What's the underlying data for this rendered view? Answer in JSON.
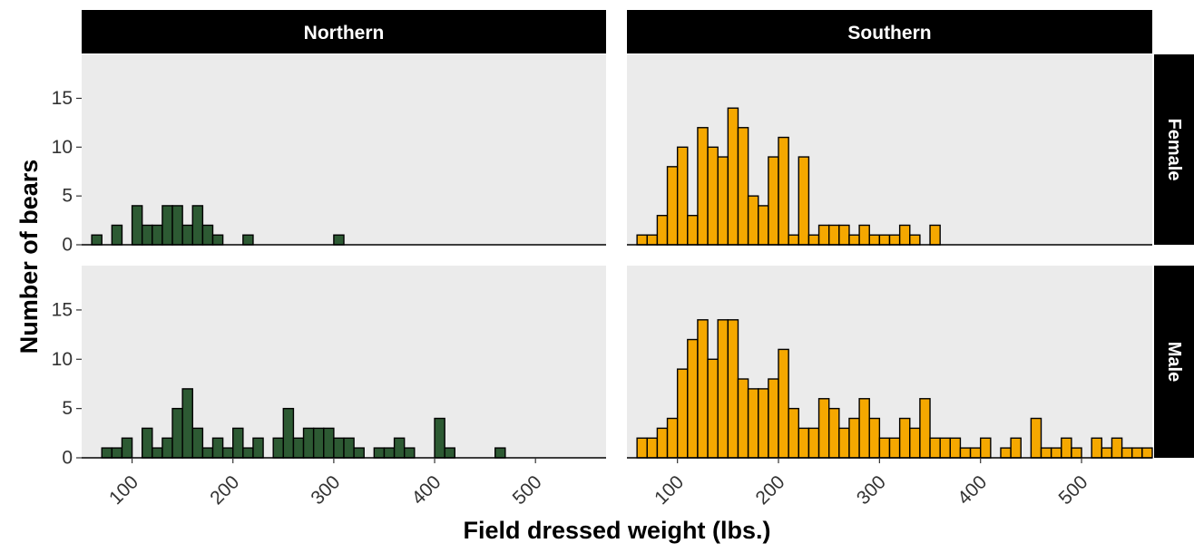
{
  "chart_data": {
    "type": "bar",
    "subtype": "faceted-histogram",
    "xlabel": "Field dressed weight (lbs.)",
    "ylabel": "Number of bears",
    "x_ticks": [
      100,
      200,
      300,
      400,
      500
    ],
    "y_ticks": [
      0,
      5,
      10,
      15
    ],
    "xlim": [
      50,
      570
    ],
    "ylim": [
      0,
      15
    ],
    "bin_width": 10,
    "grid": false,
    "column_strips": [
      "Northern",
      "Southern"
    ],
    "row_strips": [
      "Female",
      "Male"
    ],
    "colors": {
      "Northern": "#2d5a33",
      "Southern": "#f5a800",
      "panel_bg": "#ebebeb",
      "strip_bg": "#000000",
      "strip_text": "#ffffff"
    },
    "panels": [
      {
        "region": "Northern",
        "sex": "Female",
        "bins": [
          [
            60,
            1
          ],
          [
            80,
            2
          ],
          [
            100,
            4
          ],
          [
            110,
            2
          ],
          [
            120,
            2
          ],
          [
            130,
            4
          ],
          [
            140,
            4
          ],
          [
            150,
            2
          ],
          [
            160,
            4
          ],
          [
            170,
            2
          ],
          [
            180,
            1
          ],
          [
            210,
            1
          ],
          [
            300,
            1
          ]
        ]
      },
      {
        "region": "Southern",
        "sex": "Female",
        "bins": [
          [
            60,
            1
          ],
          [
            70,
            1
          ],
          [
            80,
            3
          ],
          [
            90,
            8
          ],
          [
            100,
            10
          ],
          [
            110,
            3
          ],
          [
            120,
            12
          ],
          [
            130,
            10
          ],
          [
            140,
            9
          ],
          [
            150,
            14
          ],
          [
            160,
            12
          ],
          [
            170,
            5
          ],
          [
            180,
            4
          ],
          [
            190,
            9
          ],
          [
            200,
            11
          ],
          [
            210,
            1
          ],
          [
            220,
            9
          ],
          [
            230,
            1
          ],
          [
            240,
            2
          ],
          [
            250,
            2
          ],
          [
            260,
            2
          ],
          [
            270,
            1
          ],
          [
            280,
            2
          ],
          [
            290,
            1
          ],
          [
            300,
            1
          ],
          [
            310,
            1
          ],
          [
            320,
            2
          ],
          [
            330,
            1
          ],
          [
            350,
            2
          ]
        ]
      },
      {
        "region": "Northern",
        "sex": "Male",
        "bins": [
          [
            70,
            1
          ],
          [
            80,
            1
          ],
          [
            90,
            2
          ],
          [
            110,
            3
          ],
          [
            120,
            1
          ],
          [
            130,
            2
          ],
          [
            140,
            5
          ],
          [
            150,
            7
          ],
          [
            160,
            3
          ],
          [
            170,
            1
          ],
          [
            180,
            2
          ],
          [
            190,
            1
          ],
          [
            200,
            3
          ],
          [
            210,
            1
          ],
          [
            220,
            2
          ],
          [
            240,
            2
          ],
          [
            250,
            5
          ],
          [
            260,
            2
          ],
          [
            270,
            3
          ],
          [
            280,
            3
          ],
          [
            290,
            3
          ],
          [
            300,
            2
          ],
          [
            310,
            2
          ],
          [
            320,
            1
          ],
          [
            340,
            1
          ],
          [
            350,
            1
          ],
          [
            360,
            2
          ],
          [
            370,
            1
          ],
          [
            400,
            4
          ],
          [
            410,
            1
          ],
          [
            460,
            1
          ]
        ]
      },
      {
        "region": "Southern",
        "sex": "Male",
        "bins": [
          [
            60,
            2
          ],
          [
            70,
            2
          ],
          [
            80,
            3
          ],
          [
            90,
            4
          ],
          [
            100,
            9
          ],
          [
            110,
            12
          ],
          [
            120,
            14
          ],
          [
            130,
            10
          ],
          [
            140,
            14
          ],
          [
            150,
            14
          ],
          [
            160,
            8
          ],
          [
            170,
            7
          ],
          [
            180,
            7
          ],
          [
            190,
            8
          ],
          [
            200,
            11
          ],
          [
            210,
            5
          ],
          [
            220,
            3
          ],
          [
            230,
            3
          ],
          [
            240,
            6
          ],
          [
            250,
            5
          ],
          [
            260,
            3
          ],
          [
            270,
            4
          ],
          [
            280,
            6
          ],
          [
            290,
            4
          ],
          [
            300,
            2
          ],
          [
            310,
            2
          ],
          [
            320,
            4
          ],
          [
            330,
            3
          ],
          [
            340,
            6
          ],
          [
            350,
            2
          ],
          [
            360,
            2
          ],
          [
            370,
            2
          ],
          [
            380,
            1
          ],
          [
            390,
            1
          ],
          [
            400,
            2
          ],
          [
            420,
            1
          ],
          [
            430,
            2
          ],
          [
            450,
            4
          ],
          [
            460,
            1
          ],
          [
            470,
            1
          ],
          [
            480,
            2
          ],
          [
            490,
            1
          ],
          [
            510,
            2
          ],
          [
            520,
            1
          ],
          [
            530,
            2
          ],
          [
            540,
            1
          ],
          [
            550,
            1
          ],
          [
            560,
            1
          ]
        ]
      }
    ]
  }
}
